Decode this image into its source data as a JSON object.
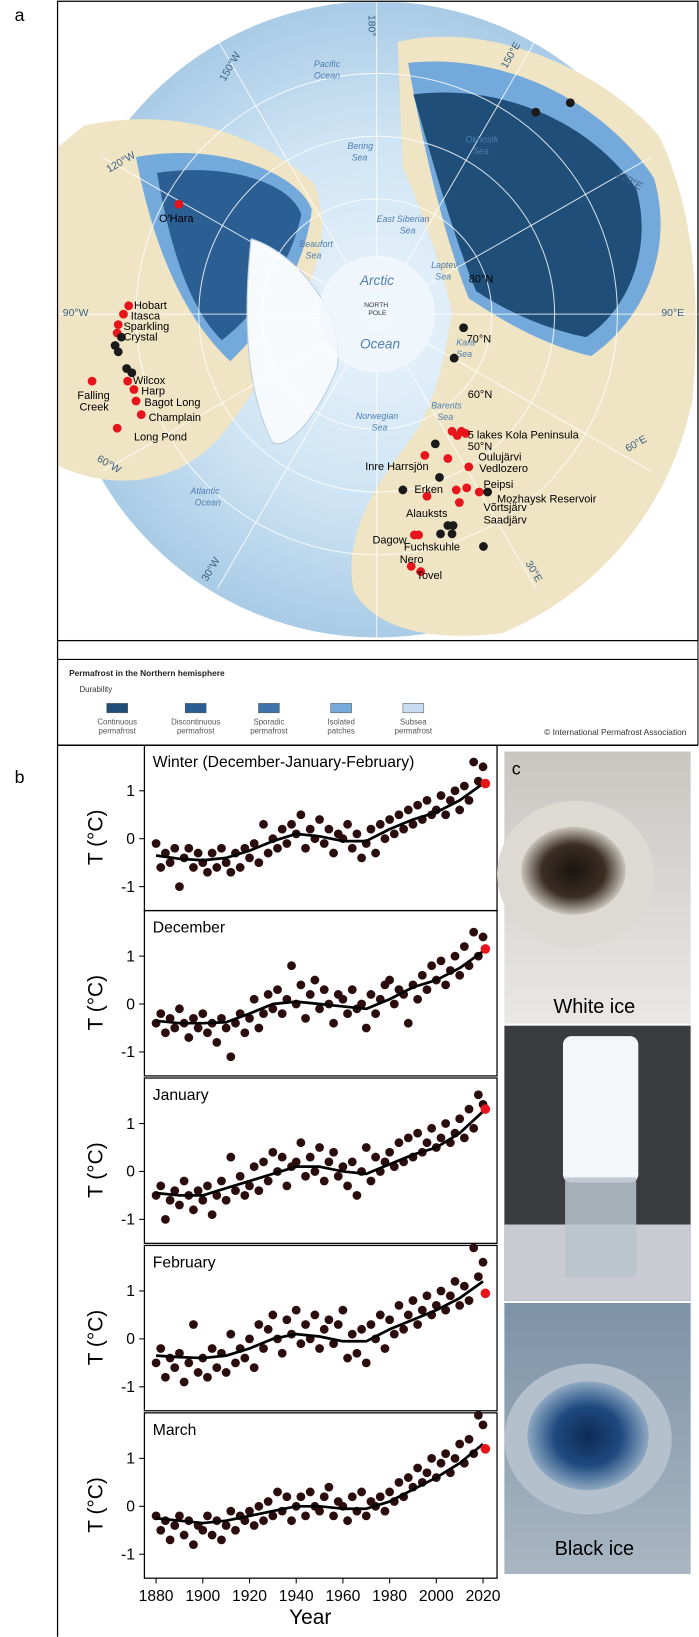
{
  "panels": {
    "a": "a",
    "b": "b",
    "c": "c"
  },
  "map": {
    "meridians": [
      "180°",
      "150°W",
      "120°W",
      "90°W",
      "60°W",
      "30°W",
      "30°E",
      "60°E",
      "90°E",
      "120°E",
      "150°E"
    ],
    "parallels": [
      "80°N",
      "70°N",
      "60°N",
      "50°N"
    ],
    "seas": [
      "Pacific",
      "Ocean",
      "Bering",
      "Sea",
      "Okhostk",
      "Sea",
      "Beaufort",
      "Sea",
      "East Siberian",
      "Sea",
      "Laptev",
      "Sea",
      "Arctic",
      "Ocean",
      "NORTH",
      "POLE",
      "Norwegian",
      "Sea",
      "Barents",
      "Sea",
      "Kara",
      "Sea",
      "Atlantic",
      "Ocean"
    ],
    "lakes": [
      "O'Hara",
      "Hobart",
      "Itasca",
      "Sparkling",
      "Crystal",
      [
        "Falling",
        "Creek"
      ],
      "Wilcox",
      "Harp",
      "Bagot Long",
      "Champlain",
      "Long Pond",
      "5 lakes Kola Peninsula",
      "Oulujärvi",
      "Vedlozero",
      "Inre Harrsjön",
      "Erken",
      "Peipsi",
      "Mozhaysk Reservoir",
      "Võrtsjärv",
      "Alauksts",
      "Saadjärv",
      "Dagow",
      "Fuchskuhle",
      "Nero",
      "Tovel"
    ]
  },
  "legend": {
    "title": "Permafrost in the Northern hemisphere",
    "subtitle": "Durability",
    "items": [
      {
        "label": [
          "Continuous",
          "permafrost"
        ],
        "color": "#1f4e79"
      },
      {
        "label": [
          "Discontinuous",
          "permafrost"
        ],
        "color": "#2b5e92"
      },
      {
        "label": [
          "Sporadic",
          "permafrost"
        ],
        "color": "#3f73ad"
      },
      {
        "label": [
          "Isolated",
          "patches"
        ],
        "color": "#74a9db"
      },
      {
        "label": [
          "Subsea",
          "permafrost"
        ],
        "color": "#c7dcef"
      }
    ],
    "credit": "© International Permafrost Association"
  },
  "photos": {
    "top": "White ice",
    "bottom": "Black ice"
  },
  "chart_data": [
    {
      "type": "scatter",
      "title": "Winter (December-January-February)",
      "ylabel": "T (°C)",
      "color": "#2b0d0d",
      "x": [
        1880,
        1882,
        1884,
        1886,
        1888,
        1890,
        1892,
        1894,
        1896,
        1898,
        1900,
        1902,
        1904,
        1906,
        1908,
        1910,
        1912,
        1914,
        1916,
        1918,
        1920,
        1922,
        1924,
        1926,
        1928,
        1930,
        1932,
        1934,
        1936,
        1938,
        1940,
        1942,
        1944,
        1946,
        1948,
        1950,
        1952,
        1954,
        1956,
        1958,
        1960,
        1962,
        1964,
        1966,
        1968,
        1970,
        1972,
        1974,
        1976,
        1978,
        1980,
        1982,
        1984,
        1986,
        1988,
        1990,
        1992,
        1994,
        1996,
        1998,
        2000,
        2002,
        2004,
        2006,
        2008,
        2010,
        2012,
        2014,
        2016,
        2018,
        2020
      ],
      "values": [
        -0.1,
        -0.6,
        -0.3,
        -0.5,
        -0.2,
        -1.0,
        -0.4,
        -0.2,
        -0.6,
        -0.3,
        -0.5,
        -0.7,
        -0.3,
        -0.6,
        -0.2,
        -0.5,
        -0.7,
        -0.3,
        -0.6,
        -0.2,
        -0.4,
        -0.1,
        -0.5,
        0.3,
        -0.3,
        0.0,
        -0.2,
        0.2,
        -0.1,
        0.3,
        0.1,
        0.5,
        -0.2,
        0.2,
        0.0,
        0.4,
        -0.1,
        0.2,
        -0.3,
        0.1,
        0.0,
        0.3,
        -0.2,
        0.1,
        -0.4,
        -0.1,
        0.2,
        -0.3,
        0.3,
        0.0,
        0.4,
        0.1,
        0.5,
        0.2,
        0.6,
        0.3,
        0.7,
        0.4,
        0.8,
        0.5,
        0.6,
        0.9,
        0.5,
        0.8,
        1.0,
        0.6,
        1.1,
        0.8,
        1.6,
        1.2,
        1.5
      ],
      "highlight": {
        "x": 2021,
        "value": 1.15,
        "color": "#e8141c"
      },
      "trend": {
        "x": [
          1880,
          1890,
          1900,
          1910,
          1920,
          1930,
          1940,
          1950,
          1960,
          1970,
          1980,
          1990,
          2000,
          2010,
          2020
        ],
        "values": [
          -0.35,
          -0.42,
          -0.45,
          -0.4,
          -0.25,
          -0.05,
          0.1,
          0.05,
          -0.05,
          -0.05,
          0.2,
          0.4,
          0.55,
          0.8,
          1.15
        ]
      },
      "xlim": [
        1875,
        2026
      ],
      "ylim": [
        -1.5,
        1.95
      ],
      "yticks": [
        -1,
        0,
        1
      ]
    },
    {
      "type": "scatter",
      "title": "December",
      "ylabel": "T (°C)",
      "color": "#2b0d0d",
      "x": [
        1880,
        1882,
        1884,
        1886,
        1888,
        1890,
        1892,
        1894,
        1896,
        1898,
        1900,
        1902,
        1904,
        1906,
        1908,
        1910,
        1912,
        1914,
        1916,
        1918,
        1920,
        1922,
        1924,
        1926,
        1928,
        1930,
        1932,
        1934,
        1936,
        1938,
        1940,
        1942,
        1944,
        1946,
        1948,
        1950,
        1952,
        1954,
        1956,
        1958,
        1960,
        1962,
        1964,
        1966,
        1968,
        1970,
        1972,
        1974,
        1976,
        1978,
        1980,
        1982,
        1984,
        1986,
        1988,
        1990,
        1992,
        1994,
        1996,
        1998,
        2000,
        2002,
        2004,
        2006,
        2008,
        2010,
        2012,
        2014,
        2016,
        2018,
        2020
      ],
      "values": [
        -0.4,
        -0.2,
        -0.6,
        -0.3,
        -0.5,
        -0.1,
        -0.4,
        -0.7,
        -0.3,
        -0.5,
        -0.2,
        -0.6,
        -0.4,
        -0.8,
        -0.3,
        -0.5,
        -1.1,
        -0.4,
        -0.2,
        -0.6,
        -0.3,
        0.1,
        -0.5,
        -0.2,
        0.2,
        -0.1,
        0.3,
        -0.2,
        0.1,
        0.8,
        0.0,
        0.4,
        -0.3,
        0.2,
        0.5,
        -0.1,
        0.3,
        0.0,
        -0.4,
        0.2,
        0.1,
        -0.2,
        0.3,
        -0.1,
        0.0,
        -0.5,
        0.2,
        -0.2,
        0.1,
        0.4,
        0.5,
        0.0,
        0.3,
        0.2,
        -0.4,
        0.4,
        0.1,
        0.6,
        0.3,
        0.8,
        0.5,
        0.9,
        0.4,
        0.7,
        1.0,
        0.6,
        1.2,
        0.8,
        1.5,
        1.0,
        1.4
      ],
      "highlight": {
        "x": 2021,
        "value": 1.15,
        "color": "#e8141c"
      },
      "trend": {
        "x": [
          1880,
          1890,
          1900,
          1910,
          1920,
          1930,
          1940,
          1950,
          1960,
          1970,
          1980,
          1990,
          2000,
          2010,
          2020
        ],
        "values": [
          -0.35,
          -0.4,
          -0.4,
          -0.38,
          -0.2,
          0.0,
          0.05,
          0.0,
          -0.05,
          -0.1,
          0.1,
          0.35,
          0.5,
          0.75,
          1.1
        ]
      },
      "xlim": [
        1875,
        2026
      ],
      "ylim": [
        -1.5,
        1.95
      ],
      "yticks": [
        -1,
        0,
        1
      ]
    },
    {
      "type": "scatter",
      "title": "January",
      "ylabel": "T (°C)",
      "color": "#2b0d0d",
      "x": [
        1880,
        1882,
        1884,
        1886,
        1888,
        1890,
        1892,
        1894,
        1896,
        1898,
        1900,
        1902,
        1904,
        1906,
        1908,
        1910,
        1912,
        1914,
        1916,
        1918,
        1920,
        1922,
        1924,
        1926,
        1928,
        1930,
        1932,
        1934,
        1936,
        1938,
        1940,
        1942,
        1944,
        1946,
        1948,
        1950,
        1952,
        1954,
        1956,
        1958,
        1960,
        1962,
        1964,
        1966,
        1968,
        1970,
        1972,
        1974,
        1976,
        1978,
        1980,
        1982,
        1984,
        1986,
        1988,
        1990,
        1992,
        1994,
        1996,
        1998,
        2000,
        2002,
        2004,
        2006,
        2008,
        2010,
        2012,
        2014,
        2016,
        2018,
        2020
      ],
      "values": [
        -0.5,
        -0.3,
        -1.0,
        -0.6,
        -0.4,
        -0.7,
        -0.2,
        -0.5,
        -0.8,
        -0.4,
        -0.6,
        -0.3,
        -0.9,
        -0.5,
        -0.2,
        -0.6,
        0.3,
        -0.4,
        -0.1,
        -0.5,
        -0.3,
        0.1,
        -0.4,
        0.2,
        -0.2,
        0.4,
        0.0,
        0.3,
        -0.3,
        0.1,
        0.2,
        0.6,
        -0.1,
        0.3,
        0.0,
        0.5,
        -0.2,
        0.2,
        0.4,
        -0.1,
        0.1,
        -0.3,
        0.2,
        -0.5,
        0.0,
        0.5,
        -0.2,
        0.3,
        0.0,
        0.2,
        0.4,
        0.1,
        0.6,
        0.2,
        0.7,
        0.3,
        0.8,
        0.4,
        0.6,
        0.9,
        0.5,
        0.7,
        1.0,
        0.6,
        0.8,
        1.1,
        0.7,
        1.3,
        0.9,
        1.6,
        1.4
      ],
      "highlight": {
        "x": 2021,
        "value": 1.3,
        "color": "#e8141c"
      },
      "trend": {
        "x": [
          1880,
          1890,
          1900,
          1910,
          1920,
          1930,
          1940,
          1950,
          1960,
          1970,
          1980,
          1990,
          2000,
          2010,
          2020
        ],
        "values": [
          -0.45,
          -0.5,
          -0.5,
          -0.35,
          -0.2,
          -0.05,
          0.1,
          0.1,
          0.0,
          -0.05,
          0.15,
          0.35,
          0.5,
          0.8,
          1.25
        ]
      },
      "xlim": [
        1875,
        2026
      ],
      "ylim": [
        -1.5,
        1.95
      ],
      "yticks": [
        -1,
        0,
        1
      ]
    },
    {
      "type": "scatter",
      "title": "February",
      "ylabel": "T (°C)",
      "color": "#2b0d0d",
      "x": [
        1880,
        1882,
        1884,
        1886,
        1888,
        1890,
        1892,
        1894,
        1896,
        1898,
        1900,
        1902,
        1904,
        1906,
        1908,
        1910,
        1912,
        1914,
        1916,
        1918,
        1920,
        1922,
        1924,
        1926,
        1928,
        1930,
        1932,
        1934,
        1936,
        1938,
        1940,
        1942,
        1944,
        1946,
        1948,
        1950,
        1952,
        1954,
        1956,
        1958,
        1960,
        1962,
        1964,
        1966,
        1968,
        1970,
        1972,
        1974,
        1976,
        1978,
        1980,
        1982,
        1984,
        1986,
        1988,
        1990,
        1992,
        1994,
        1996,
        1998,
        2000,
        2002,
        2004,
        2006,
        2008,
        2010,
        2012,
        2014,
        2016,
        2018,
        2020
      ],
      "values": [
        -0.5,
        -0.2,
        -0.8,
        -0.4,
        -0.6,
        -0.3,
        -0.9,
        -0.5,
        0.3,
        -0.7,
        -0.4,
        -0.8,
        -0.2,
        -0.6,
        -0.3,
        -0.7,
        0.1,
        -0.5,
        -0.2,
        -0.4,
        0.0,
        -0.6,
        0.3,
        -0.2,
        0.2,
        0.5,
        0.0,
        -0.3,
        0.4,
        0.1,
        0.6,
        -0.1,
        0.3,
        0.0,
        0.5,
        -0.2,
        0.2,
        0.4,
        -0.1,
        0.3,
        0.6,
        -0.4,
        0.1,
        -0.3,
        0.2,
        -0.5,
        0.3,
        0.0,
        0.5,
        -0.2,
        0.4,
        0.1,
        0.7,
        0.2,
        0.5,
        0.8,
        0.3,
        0.6,
        0.9,
        0.5,
        0.7,
        1.0,
        0.6,
        0.9,
        1.2,
        0.7,
        1.1,
        0.8,
        1.9,
        1.3,
        1.6
      ],
      "highlight": {
        "x": 2021,
        "value": 0.95,
        "color": "#e8141c"
      },
      "trend": {
        "x": [
          1880,
          1890,
          1900,
          1910,
          1920,
          1930,
          1940,
          1950,
          1960,
          1970,
          1980,
          1990,
          2000,
          2010,
          2020
        ],
        "values": [
          -0.35,
          -0.38,
          -0.4,
          -0.35,
          -0.2,
          0.0,
          0.1,
          0.05,
          -0.05,
          -0.05,
          0.2,
          0.4,
          0.6,
          0.85,
          1.2
        ]
      },
      "xlim": [
        1875,
        2026
      ],
      "ylim": [
        -1.5,
        1.95
      ],
      "yticks": [
        -1,
        0,
        1
      ]
    },
    {
      "type": "scatter",
      "title": "March",
      "ylabel": "T (°C)",
      "xlabel": "Year",
      "color": "#2b0d0d",
      "x": [
        1880,
        1882,
        1884,
        1886,
        1888,
        1890,
        1892,
        1894,
        1896,
        1898,
        1900,
        1902,
        1904,
        1906,
        1908,
        1910,
        1912,
        1914,
        1916,
        1918,
        1920,
        1922,
        1924,
        1926,
        1928,
        1930,
        1932,
        1934,
        1936,
        1938,
        1940,
        1942,
        1944,
        1946,
        1948,
        1950,
        1952,
        1954,
        1956,
        1958,
        1960,
        1962,
        1964,
        1966,
        1968,
        1970,
        1972,
        1974,
        1976,
        1978,
        1980,
        1982,
        1984,
        1986,
        1988,
        1990,
        1992,
        1994,
        1996,
        1998,
        2000,
        2002,
        2004,
        2006,
        2008,
        2010,
        2012,
        2014,
        2016,
        2018,
        2020
      ],
      "values": [
        -0.2,
        -0.5,
        -0.3,
        -0.7,
        -0.4,
        -0.2,
        -0.6,
        -0.3,
        -0.8,
        -0.4,
        -0.5,
        -0.2,
        -0.6,
        -0.3,
        -0.7,
        -0.4,
        -0.1,
        -0.5,
        -0.2,
        -0.3,
        -0.1,
        -0.4,
        0.0,
        -0.3,
        0.1,
        -0.2,
        0.3,
        -0.1,
        0.2,
        -0.3,
        0.0,
        0.2,
        -0.2,
        0.3,
        0.0,
        -0.1,
        0.2,
        0.4,
        -0.2,
        0.1,
        0.0,
        -0.3,
        0.2,
        -0.1,
        0.3,
        -0.2,
        0.1,
        0.0,
        0.2,
        -0.1,
        0.3,
        0.1,
        0.5,
        0.2,
        0.6,
        0.4,
        0.8,
        0.5,
        0.7,
        1.0,
        0.6,
        0.9,
        1.1,
        0.7,
        1.0,
        1.3,
        0.9,
        1.4,
        1.1,
        1.9,
        1.7
      ],
      "highlight": {
        "x": 2021,
        "value": 1.2,
        "color": "#e8141c"
      },
      "trend": {
        "x": [
          1880,
          1890,
          1900,
          1910,
          1920,
          1930,
          1940,
          1950,
          1960,
          1970,
          1980,
          1990,
          2000,
          2010,
          2020
        ],
        "values": [
          -0.25,
          -0.3,
          -0.35,
          -0.3,
          -0.2,
          -0.1,
          0.0,
          0.0,
          -0.05,
          -0.05,
          0.1,
          0.35,
          0.6,
          0.9,
          1.3
        ]
      },
      "xlim": [
        1875,
        2026
      ],
      "ylim": [
        -1.5,
        1.95
      ],
      "yticks": [
        -1,
        0,
        1
      ],
      "xticks": [
        1880,
        1900,
        1920,
        1940,
        1960,
        1980,
        2000,
        2020
      ]
    }
  ]
}
